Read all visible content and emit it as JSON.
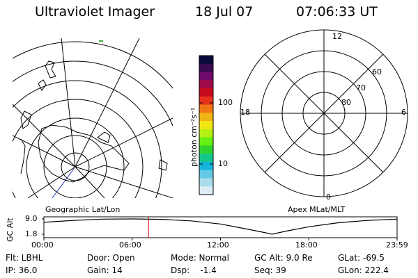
{
  "header": {
    "title": "Ultraviolet Imager",
    "date": "18 Jul 07",
    "time": "07:06:33 UT"
  },
  "colorbar": {
    "unit_label": "photon cm⁻²s⁻¹",
    "tick_100": "100",
    "tick_10": "10",
    "colors": [
      "#0a0a3a",
      "#3a0a4e",
      "#6e0a6a",
      "#a00a4a",
      "#c80a1e",
      "#e6321e",
      "#f07814",
      "#f0b414",
      "#f0e614",
      "#b4f014",
      "#64f014",
      "#32d232",
      "#14c88c",
      "#14b4dc",
      "#64c8e6",
      "#aadcec",
      "#dcecf4"
    ]
  },
  "left_panel": {
    "label": "Geographic Lat/Lon"
  },
  "right_panel": {
    "label": "Apex MLat/MLT",
    "mlt_12": "12",
    "mlt_18": "18",
    "mlt_6": "6",
    "mlt_0": "0",
    "lat_60": "60",
    "lat_70": "70",
    "lat_80": "80"
  },
  "altitude_plot": {
    "ylabel": "GC Alt",
    "ytick_high": "9.0",
    "ytick_low": "1.8",
    "xticks": [
      "00:00",
      "06:00",
      "12:00",
      "18:00",
      "23:59"
    ],
    "series": [
      {
        "x": 0.0,
        "y": 7.4
      },
      {
        "x": 2.0,
        "y": 8.3
      },
      {
        "x": 4.0,
        "y": 8.9
      },
      {
        "x": 6.0,
        "y": 9.0
      },
      {
        "x": 8.0,
        "y": 8.8
      },
      {
        "x": 10.0,
        "y": 8.1
      },
      {
        "x": 12.0,
        "y": 6.6
      },
      {
        "x": 13.5,
        "y": 4.6
      },
      {
        "x": 15.0,
        "y": 2.6
      },
      {
        "x": 15.5,
        "y": 1.8
      },
      {
        "x": 16.5,
        "y": 3.3
      },
      {
        "x": 18.0,
        "y": 5.3
      },
      {
        "x": 20.0,
        "y": 7.2
      },
      {
        "x": 22.0,
        "y": 8.3
      },
      {
        "x": 23.98,
        "y": 8.9
      }
    ],
    "marker_hour": 7.11,
    "marker_color": "#cc0000"
  },
  "status": {
    "flt": "Flt: LBHL",
    "door": "Door: Open",
    "mode": "Mode: Normal",
    "gc_alt": "GC Alt: 9.0 Re",
    "glat": "GLat: -69.5",
    "ip": "IP: 36.0",
    "gain": "Gain: 14",
    "dsp": "Dsp:    -1.4",
    "seq": "Seq: 39",
    "glon": "GLon: 222.4"
  }
}
